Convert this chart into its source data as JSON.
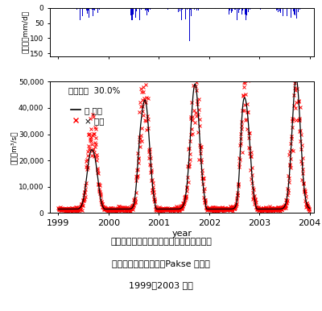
{
  "ylabel_top": "降雨量（mm/d）",
  "ylabel_bottom": "流量（m³/s）",
  "xlabel_bottom": "year",
  "annotation": "相対誤差  30.0%",
  "legend_estimated": "一 推定",
  "legend_observed": "× 実測",
  "rain_color": "#0000cc",
  "estimated_color": "#000000",
  "observed_color": "#ff0000",
  "rain_ylim": [
    160,
    0
  ],
  "flow_ylim": [
    0,
    50000
  ],
  "flow_yticks": [
    0,
    10000,
    20000,
    30000,
    40000,
    50000
  ],
  "background_color": "#ffffff",
  "caption_line1": "図３　観測流量と流出モデルによる推定流",
  "caption_line2": "量の比較（図１の本川Pakse 地点、",
  "caption_line3": "1999～2003 年）"
}
